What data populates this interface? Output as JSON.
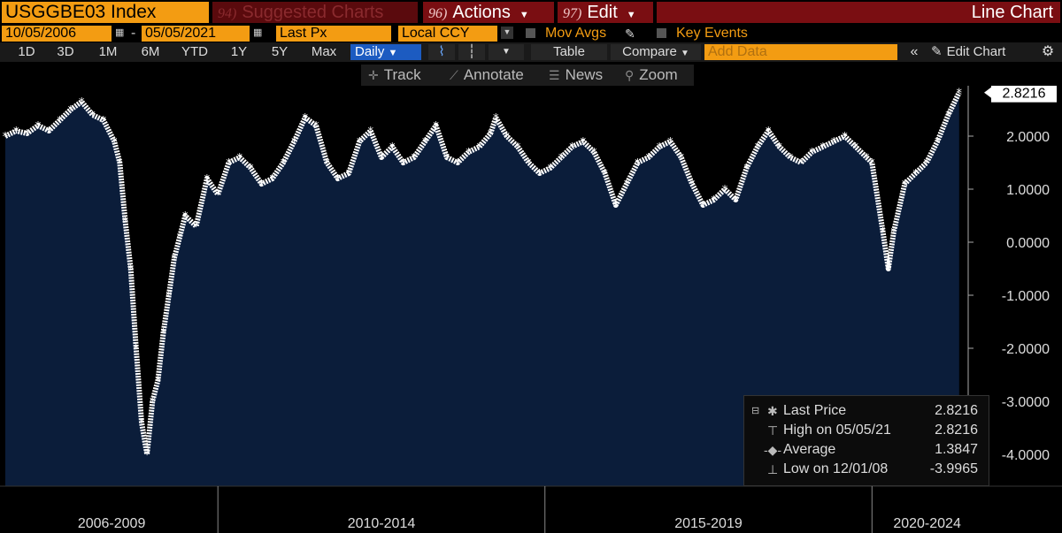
{
  "header": {
    "ticker": "USGGBE03 Index",
    "suggested_num": "94)",
    "suggested_label": "Suggested Charts",
    "actions_num": "96)",
    "actions_label": "Actions",
    "edit_num": "97)",
    "edit_label": "Edit",
    "chart_type_title": "Line Chart"
  },
  "options": {
    "start_date": "10/05/2006",
    "end_date": "05/05/2021",
    "field": "Last Px",
    "currency": "Local CCY",
    "mov_avgs": "Mov Avgs",
    "key_events": "Key Events"
  },
  "toolbar": {
    "ranges": [
      "1D",
      "3D",
      "1M",
      "6M",
      "YTD",
      "1Y",
      "5Y",
      "Max"
    ],
    "frequency": "Daily",
    "table": "Table",
    "compare": "Compare",
    "add_data_placeholder": "Add Data",
    "edit_chart": "Edit Chart"
  },
  "tools": {
    "track": "Track",
    "annotate": "Annotate",
    "news": "News",
    "zoom": "Zoom"
  },
  "legend": {
    "last_price_label": "Last Price",
    "last_price_value": "2.8216",
    "high_label": "High on 05/05/21",
    "high_value": "2.8216",
    "average_label": "Average",
    "average_value": "1.3847",
    "low_label": "Low on 12/01/08",
    "low_value": "-3.9965"
  },
  "last_value_tag": "2.8216",
  "colors": {
    "fill": "#0b1d3a",
    "line": "#ffffff",
    "accent": "#f39c12",
    "header_red": "#7a0e12"
  },
  "chart_data": {
    "type": "area",
    "title": "",
    "xlabel": "",
    "ylabel": "",
    "x_period_labels": [
      "2006-2009",
      "2010-2014",
      "2015-2019",
      "2020-2024"
    ],
    "y_ticks": [
      "2.0000",
      "1.0000",
      "0.0000",
      "-1.0000",
      "-2.0000",
      "-3.0000",
      "-4.0000"
    ],
    "ylim": [
      -4.6,
      2.95
    ],
    "xlim": [
      "2006-10",
      "2021-06"
    ],
    "grid": false,
    "legend_position": "bottom-right",
    "series": [
      {
        "values": [
          [
            "2006-10",
            2.0
          ],
          [
            "2006-12",
            2.1
          ],
          [
            "2007-02",
            2.05
          ],
          [
            "2007-04",
            2.2
          ],
          [
            "2007-06",
            2.1
          ],
          [
            "2007-08",
            2.3
          ],
          [
            "2007-10",
            2.5
          ],
          [
            "2007-12",
            2.65
          ],
          [
            "2008-02",
            2.4
          ],
          [
            "2008-04",
            2.3
          ],
          [
            "2008-06",
            1.9
          ],
          [
            "2008-07",
            1.5
          ],
          [
            "2008-08",
            0.4
          ],
          [
            "2008-09",
            -0.5
          ],
          [
            "2008-10",
            -2.0
          ],
          [
            "2008-11",
            -3.4
          ],
          [
            "2008-12",
            -3.9965
          ],
          [
            "2009-01",
            -3.0
          ],
          [
            "2009-02",
            -2.6
          ],
          [
            "2009-03",
            -1.7
          ],
          [
            "2009-04",
            -1.0
          ],
          [
            "2009-05",
            -0.3
          ],
          [
            "2009-06",
            0.1
          ],
          [
            "2009-07",
            0.5
          ],
          [
            "2009-09",
            0.3
          ],
          [
            "2009-11",
            1.2
          ],
          [
            "2010-01",
            0.9
          ],
          [
            "2010-03",
            1.5
          ],
          [
            "2010-05",
            1.6
          ],
          [
            "2010-07",
            1.4
          ],
          [
            "2010-09",
            1.1
          ],
          [
            "2010-11",
            1.2
          ],
          [
            "2011-01",
            1.5
          ],
          [
            "2011-03",
            1.9
          ],
          [
            "2011-05",
            2.35
          ],
          [
            "2011-07",
            2.2
          ],
          [
            "2011-09",
            1.5
          ],
          [
            "2011-11",
            1.2
          ],
          [
            "2012-01",
            1.3
          ],
          [
            "2012-03",
            1.9
          ],
          [
            "2012-05",
            2.1
          ],
          [
            "2012-07",
            1.6
          ],
          [
            "2012-09",
            1.8
          ],
          [
            "2012-11",
            1.5
          ],
          [
            "2013-01",
            1.6
          ],
          [
            "2013-03",
            1.9
          ],
          [
            "2013-05",
            2.2
          ],
          [
            "2013-07",
            1.6
          ],
          [
            "2013-09",
            1.5
          ],
          [
            "2013-11",
            1.7
          ],
          [
            "2014-01",
            1.8
          ],
          [
            "2014-03",
            2.05
          ],
          [
            "2014-04",
            2.35
          ],
          [
            "2014-06",
            2.0
          ],
          [
            "2014-08",
            1.8
          ],
          [
            "2014-10",
            1.5
          ],
          [
            "2014-12",
            1.3
          ],
          [
            "2015-02",
            1.4
          ],
          [
            "2015-04",
            1.6
          ],
          [
            "2015-06",
            1.8
          ],
          [
            "2015-08",
            1.9
          ],
          [
            "2015-10",
            1.7
          ],
          [
            "2015-12",
            1.3
          ],
          [
            "2016-02",
            0.7
          ],
          [
            "2016-04",
            1.1
          ],
          [
            "2016-06",
            1.5
          ],
          [
            "2016-08",
            1.6
          ],
          [
            "2016-10",
            1.8
          ],
          [
            "2016-12",
            1.9
          ],
          [
            "2017-02",
            1.6
          ],
          [
            "2017-04",
            1.1
          ],
          [
            "2017-06",
            0.7
          ],
          [
            "2017-08",
            0.8
          ],
          [
            "2017-10",
            1.0
          ],
          [
            "2017-12",
            0.8
          ],
          [
            "2018-02",
            1.4
          ],
          [
            "2018-04",
            1.8
          ],
          [
            "2018-06",
            2.1
          ],
          [
            "2018-08",
            1.8
          ],
          [
            "2018-10",
            1.6
          ],
          [
            "2018-12",
            1.5
          ],
          [
            "2019-02",
            1.7
          ],
          [
            "2019-04",
            1.8
          ],
          [
            "2019-06",
            1.9
          ],
          [
            "2019-08",
            2.0
          ],
          [
            "2019-10",
            1.8
          ],
          [
            "2019-12",
            1.6
          ],
          [
            "2020-01",
            1.5
          ],
          [
            "2020-03",
            0.2
          ],
          [
            "2020-04",
            -0.5
          ],
          [
            "2020-05",
            0.2
          ],
          [
            "2020-07",
            1.1
          ],
          [
            "2020-09",
            1.3
          ],
          [
            "2020-11",
            1.5
          ],
          [
            "2021-01",
            1.9
          ],
          [
            "2021-03",
            2.4
          ],
          [
            "2021-05",
            2.8216
          ]
        ]
      }
    ]
  }
}
